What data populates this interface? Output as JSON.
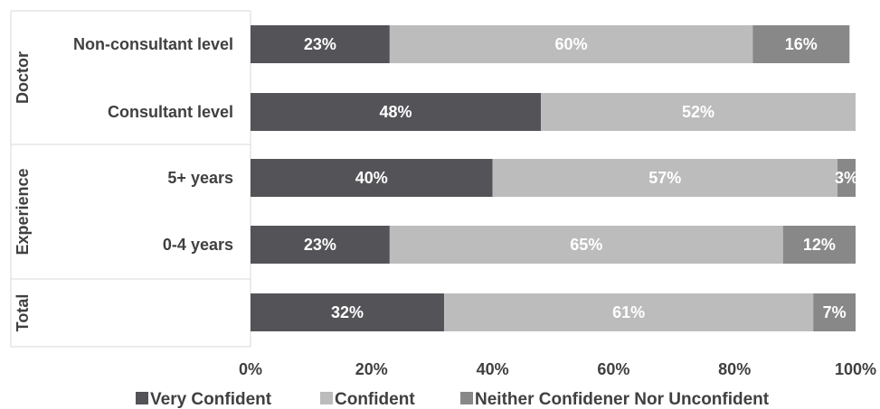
{
  "chart_data": {
    "type": "bar",
    "orientation": "horizontal",
    "stacked": true,
    "title": "",
    "xlabel": "",
    "ylabel": "",
    "xlim": [
      0,
      100
    ],
    "x_ticks": [
      "0%",
      "20%",
      "40%",
      "60%",
      "80%",
      "100%"
    ],
    "groups": [
      {
        "label": "Doctor",
        "categories": [
          "Non-consultant level",
          "Consultant level"
        ]
      },
      {
        "label": "Experience",
        "categories": [
          "5+ years",
          "0-4 years"
        ]
      },
      {
        "label": "Total",
        "categories": [
          ""
        ]
      }
    ],
    "categories": [
      "Non-consultant level",
      "Consultant level",
      "5+ years",
      "0-4 years",
      ""
    ],
    "series": [
      {
        "name": "Very Confident",
        "color": "#545358",
        "values": [
          23,
          48,
          40,
          23,
          32
        ]
      },
      {
        "name": "Confident",
        "color": "#bcbcbc",
        "values": [
          60,
          52,
          57,
          65,
          61
        ]
      },
      {
        "name": "Neither Confidener Nor Unconfident",
        "color": "#888888",
        "values": [
          16,
          0,
          3,
          12,
          7
        ]
      }
    ],
    "data_labels": [
      [
        "23%",
        "48%",
        "40%",
        "23%",
        "32%"
      ],
      [
        "60%",
        "52%",
        "57%",
        "65%",
        "61%"
      ],
      [
        "16%",
        "",
        "3%",
        "12%",
        "7%"
      ]
    ],
    "legend_position": "bottom",
    "grid": false
  }
}
